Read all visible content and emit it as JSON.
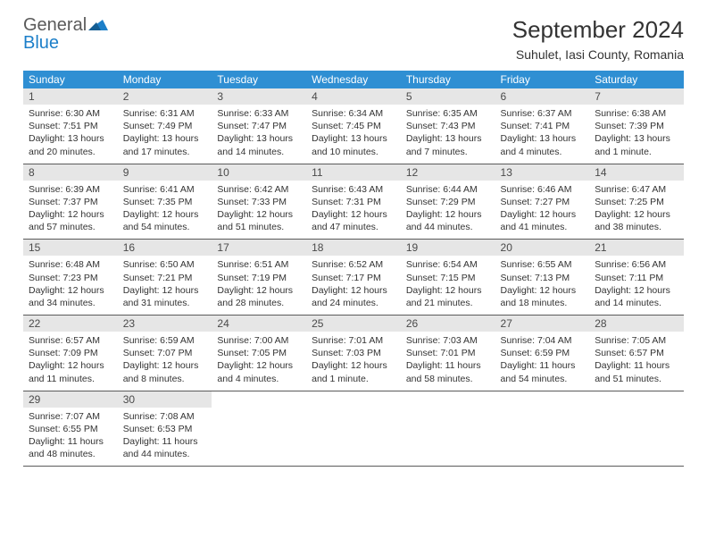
{
  "logo": {
    "general": "General",
    "blue": "Blue"
  },
  "title": "September 2024",
  "location": "Suhulet, Iasi County, Romania",
  "headers": [
    "Sunday",
    "Monday",
    "Tuesday",
    "Wednesday",
    "Thursday",
    "Friday",
    "Saturday"
  ],
  "colors": {
    "headerBg": "#2f8fd3",
    "headerText": "#ffffff",
    "dayNumBg": "#e6e6e6",
    "logoBlue": "#1c7fc9",
    "logoGray": "#5a5a5a"
  },
  "weeks": [
    [
      {
        "num": "1",
        "sunrise": "Sunrise: 6:30 AM",
        "sunset": "Sunset: 7:51 PM",
        "daylight1": "Daylight: 13 hours",
        "daylight2": "and 20 minutes."
      },
      {
        "num": "2",
        "sunrise": "Sunrise: 6:31 AM",
        "sunset": "Sunset: 7:49 PM",
        "daylight1": "Daylight: 13 hours",
        "daylight2": "and 17 minutes."
      },
      {
        "num": "3",
        "sunrise": "Sunrise: 6:33 AM",
        "sunset": "Sunset: 7:47 PM",
        "daylight1": "Daylight: 13 hours",
        "daylight2": "and 14 minutes."
      },
      {
        "num": "4",
        "sunrise": "Sunrise: 6:34 AM",
        "sunset": "Sunset: 7:45 PM",
        "daylight1": "Daylight: 13 hours",
        "daylight2": "and 10 minutes."
      },
      {
        "num": "5",
        "sunrise": "Sunrise: 6:35 AM",
        "sunset": "Sunset: 7:43 PM",
        "daylight1": "Daylight: 13 hours",
        "daylight2": "and 7 minutes."
      },
      {
        "num": "6",
        "sunrise": "Sunrise: 6:37 AM",
        "sunset": "Sunset: 7:41 PM",
        "daylight1": "Daylight: 13 hours",
        "daylight2": "and 4 minutes."
      },
      {
        "num": "7",
        "sunrise": "Sunrise: 6:38 AM",
        "sunset": "Sunset: 7:39 PM",
        "daylight1": "Daylight: 13 hours",
        "daylight2": "and 1 minute."
      }
    ],
    [
      {
        "num": "8",
        "sunrise": "Sunrise: 6:39 AM",
        "sunset": "Sunset: 7:37 PM",
        "daylight1": "Daylight: 12 hours",
        "daylight2": "and 57 minutes."
      },
      {
        "num": "9",
        "sunrise": "Sunrise: 6:41 AM",
        "sunset": "Sunset: 7:35 PM",
        "daylight1": "Daylight: 12 hours",
        "daylight2": "and 54 minutes."
      },
      {
        "num": "10",
        "sunrise": "Sunrise: 6:42 AM",
        "sunset": "Sunset: 7:33 PM",
        "daylight1": "Daylight: 12 hours",
        "daylight2": "and 51 minutes."
      },
      {
        "num": "11",
        "sunrise": "Sunrise: 6:43 AM",
        "sunset": "Sunset: 7:31 PM",
        "daylight1": "Daylight: 12 hours",
        "daylight2": "and 47 minutes."
      },
      {
        "num": "12",
        "sunrise": "Sunrise: 6:44 AM",
        "sunset": "Sunset: 7:29 PM",
        "daylight1": "Daylight: 12 hours",
        "daylight2": "and 44 minutes."
      },
      {
        "num": "13",
        "sunrise": "Sunrise: 6:46 AM",
        "sunset": "Sunset: 7:27 PM",
        "daylight1": "Daylight: 12 hours",
        "daylight2": "and 41 minutes."
      },
      {
        "num": "14",
        "sunrise": "Sunrise: 6:47 AM",
        "sunset": "Sunset: 7:25 PM",
        "daylight1": "Daylight: 12 hours",
        "daylight2": "and 38 minutes."
      }
    ],
    [
      {
        "num": "15",
        "sunrise": "Sunrise: 6:48 AM",
        "sunset": "Sunset: 7:23 PM",
        "daylight1": "Daylight: 12 hours",
        "daylight2": "and 34 minutes."
      },
      {
        "num": "16",
        "sunrise": "Sunrise: 6:50 AM",
        "sunset": "Sunset: 7:21 PM",
        "daylight1": "Daylight: 12 hours",
        "daylight2": "and 31 minutes."
      },
      {
        "num": "17",
        "sunrise": "Sunrise: 6:51 AM",
        "sunset": "Sunset: 7:19 PM",
        "daylight1": "Daylight: 12 hours",
        "daylight2": "and 28 minutes."
      },
      {
        "num": "18",
        "sunrise": "Sunrise: 6:52 AM",
        "sunset": "Sunset: 7:17 PM",
        "daylight1": "Daylight: 12 hours",
        "daylight2": "and 24 minutes."
      },
      {
        "num": "19",
        "sunrise": "Sunrise: 6:54 AM",
        "sunset": "Sunset: 7:15 PM",
        "daylight1": "Daylight: 12 hours",
        "daylight2": "and 21 minutes."
      },
      {
        "num": "20",
        "sunrise": "Sunrise: 6:55 AM",
        "sunset": "Sunset: 7:13 PM",
        "daylight1": "Daylight: 12 hours",
        "daylight2": "and 18 minutes."
      },
      {
        "num": "21",
        "sunrise": "Sunrise: 6:56 AM",
        "sunset": "Sunset: 7:11 PM",
        "daylight1": "Daylight: 12 hours",
        "daylight2": "and 14 minutes."
      }
    ],
    [
      {
        "num": "22",
        "sunrise": "Sunrise: 6:57 AM",
        "sunset": "Sunset: 7:09 PM",
        "daylight1": "Daylight: 12 hours",
        "daylight2": "and 11 minutes."
      },
      {
        "num": "23",
        "sunrise": "Sunrise: 6:59 AM",
        "sunset": "Sunset: 7:07 PM",
        "daylight1": "Daylight: 12 hours",
        "daylight2": "and 8 minutes."
      },
      {
        "num": "24",
        "sunrise": "Sunrise: 7:00 AM",
        "sunset": "Sunset: 7:05 PM",
        "daylight1": "Daylight: 12 hours",
        "daylight2": "and 4 minutes."
      },
      {
        "num": "25",
        "sunrise": "Sunrise: 7:01 AM",
        "sunset": "Sunset: 7:03 PM",
        "daylight1": "Daylight: 12 hours",
        "daylight2": "and 1 minute."
      },
      {
        "num": "26",
        "sunrise": "Sunrise: 7:03 AM",
        "sunset": "Sunset: 7:01 PM",
        "daylight1": "Daylight: 11 hours",
        "daylight2": "and 58 minutes."
      },
      {
        "num": "27",
        "sunrise": "Sunrise: 7:04 AM",
        "sunset": "Sunset: 6:59 PM",
        "daylight1": "Daylight: 11 hours",
        "daylight2": "and 54 minutes."
      },
      {
        "num": "28",
        "sunrise": "Sunrise: 7:05 AM",
        "sunset": "Sunset: 6:57 PM",
        "daylight1": "Daylight: 11 hours",
        "daylight2": "and 51 minutes."
      }
    ],
    [
      {
        "num": "29",
        "sunrise": "Sunrise: 7:07 AM",
        "sunset": "Sunset: 6:55 PM",
        "daylight1": "Daylight: 11 hours",
        "daylight2": "and 48 minutes."
      },
      {
        "num": "30",
        "sunrise": "Sunrise: 7:08 AM",
        "sunset": "Sunset: 6:53 PM",
        "daylight1": "Daylight: 11 hours",
        "daylight2": "and 44 minutes."
      },
      {
        "empty": true
      },
      {
        "empty": true
      },
      {
        "empty": true
      },
      {
        "empty": true
      },
      {
        "empty": true
      }
    ]
  ]
}
